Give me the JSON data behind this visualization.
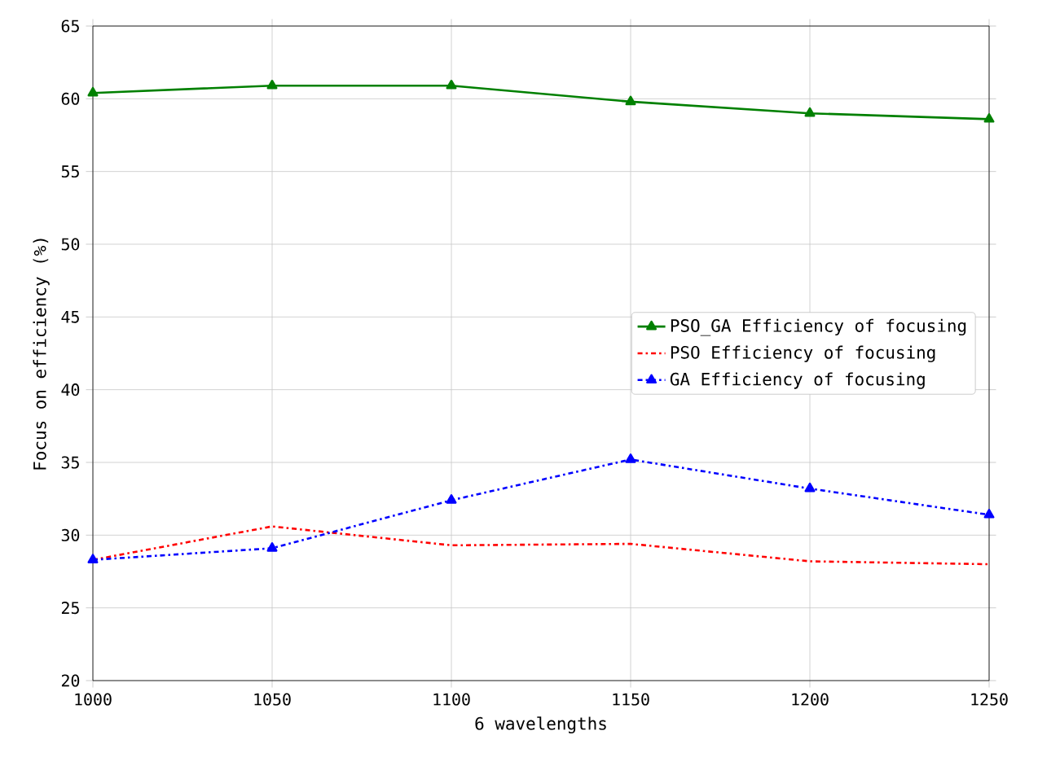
{
  "chart_data": {
    "type": "line",
    "xlabel": "6 wavelengths",
    "ylabel": "Focus on efficiency (%)",
    "x": [
      1000,
      1050,
      1100,
      1150,
      1200,
      1250
    ],
    "series": [
      {
        "name": "PSO_GA Efficiency of focusing",
        "color": "#008000",
        "marker": "triangle",
        "line_style": "solid",
        "values": [
          60.4,
          60.9,
          60.9,
          59.8,
          59.0,
          58.6
        ]
      },
      {
        "name": "PSO Efficiency of focusing",
        "color": "#ff0000",
        "marker": "none",
        "line_style": "dashdot",
        "values": [
          28.3,
          30.6,
          29.3,
          29.4,
          28.2,
          28.0
        ]
      },
      {
        "name": "GA Efficiency of focusing",
        "color": "#0000ff",
        "marker": "triangle",
        "line_style": "dashdot",
        "values": [
          28.3,
          29.1,
          32.4,
          35.2,
          33.2,
          31.4
        ]
      }
    ],
    "xlim": [
      1000,
      1250
    ],
    "ylim": [
      20,
      65
    ],
    "xticks": [
      1000,
      1050,
      1100,
      1150,
      1200,
      1250
    ],
    "yticks": [
      20,
      25,
      30,
      35,
      40,
      45,
      50,
      55,
      60,
      65
    ],
    "grid": true,
    "legend": "right"
  }
}
